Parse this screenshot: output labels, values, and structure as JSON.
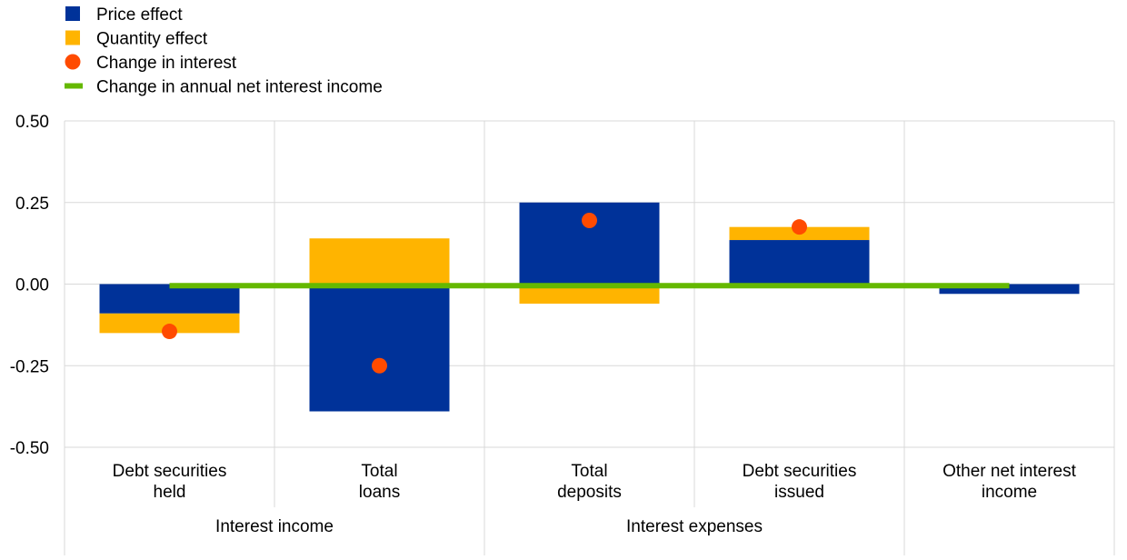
{
  "chart_data": {
    "type": "bar",
    "stacked": true,
    "legend": {
      "placement": "top-left",
      "items": [
        {
          "label": "Price effect",
          "kind": "square",
          "color": "#003299"
        },
        {
          "label": "Quantity effect",
          "kind": "square",
          "color": "#FFB400"
        },
        {
          "label": "Change in interest",
          "kind": "dot",
          "color": "#FF4B00"
        },
        {
          "label": "Change in annual net interest income",
          "kind": "line",
          "color": "#65B800"
        }
      ]
    },
    "categories": [
      {
        "lines": [
          "Debt securities",
          "held"
        ]
      },
      {
        "lines": [
          "Total",
          "loans"
        ]
      },
      {
        "lines": [
          "Total",
          "deposits"
        ]
      },
      {
        "lines": [
          "Debt securities",
          "issued"
        ]
      },
      {
        "lines": [
          "Other net interest",
          "income"
        ]
      }
    ],
    "groups": [
      {
        "label": "Interest income",
        "span": [
          0,
          1
        ]
      },
      {
        "label": "Interest expenses",
        "span": [
          2,
          3
        ]
      }
    ],
    "series": [
      {
        "name": "Price effect",
        "color": "#003299",
        "values": [
          -0.09,
          -0.39,
          0.25,
          0.135,
          -0.03
        ]
      },
      {
        "name": "Quantity effect",
        "color": "#FFB400",
        "values": [
          -0.06,
          0.14,
          -0.06,
          0.04,
          0.0
        ]
      }
    ],
    "change_in_interest": {
      "name": "Change in interest",
      "color": "#FF4B00",
      "values": [
        -0.145,
        -0.25,
        0.195,
        0.175,
        null
      ]
    },
    "net_interest_income": {
      "name": "Change in annual net interest income",
      "color": "#65B800",
      "value": -0.005
    },
    "yticks": [
      "0.50",
      "0.25",
      "0.00",
      "-0.25",
      "-0.50"
    ],
    "ylim": [
      -0.5,
      0.5
    ],
    "grid": true
  }
}
